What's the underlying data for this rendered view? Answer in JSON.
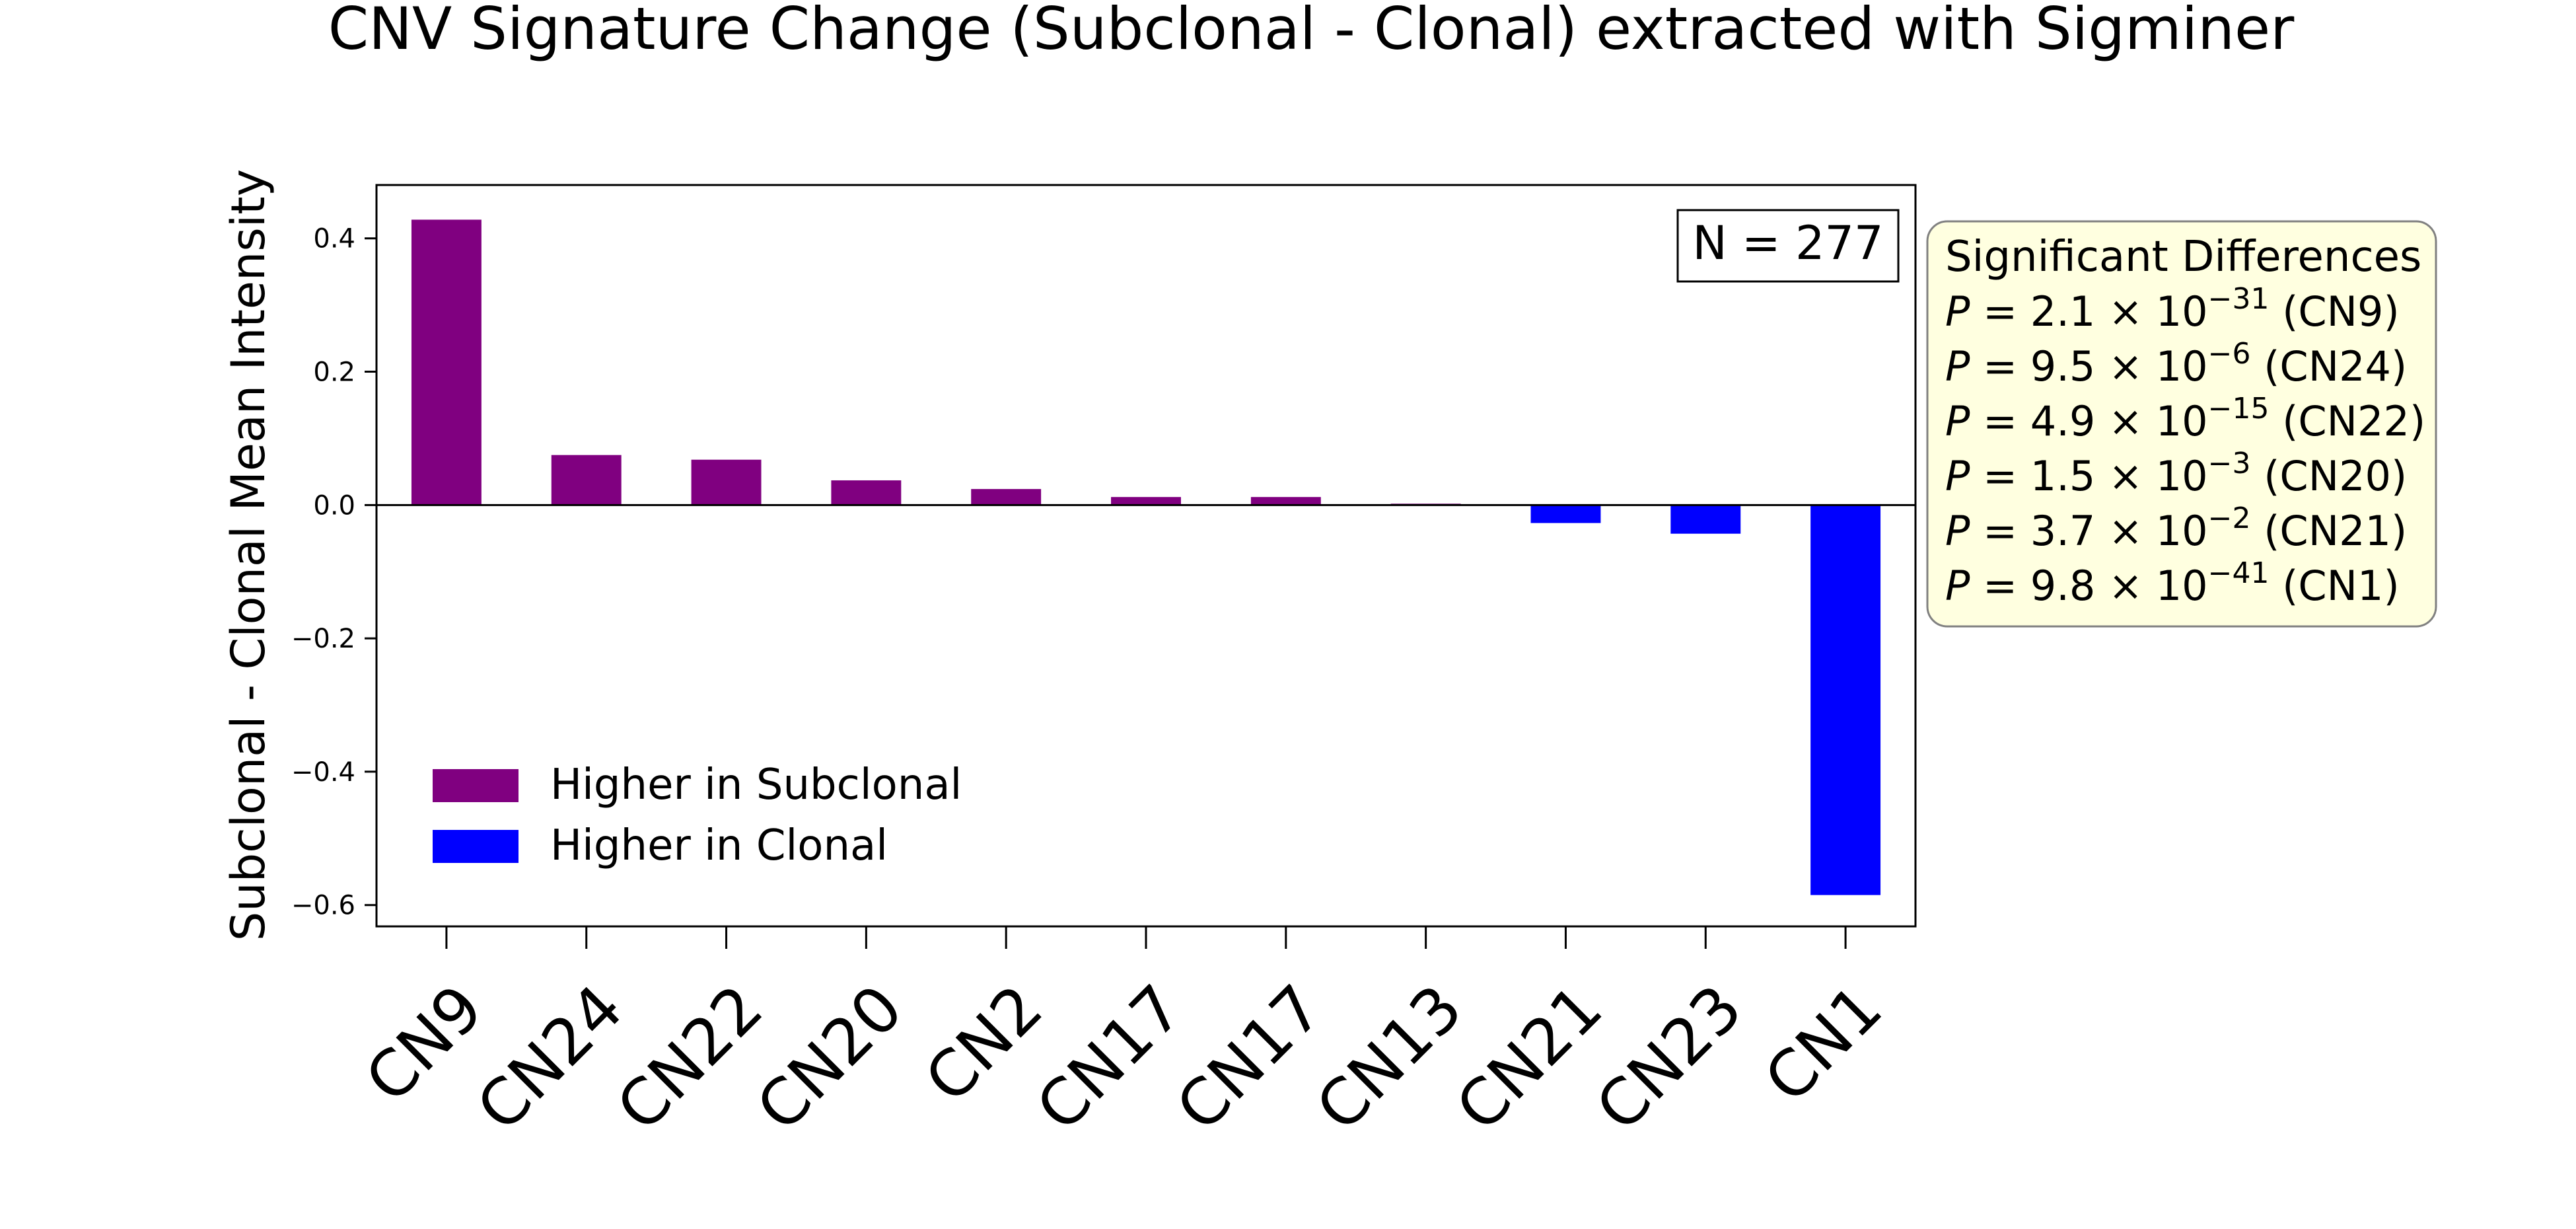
{
  "chart_data": {
    "type": "bar",
    "title": "CNV Signature Change (Subclonal - Clonal) extracted with Sigminer",
    "xlabel": "",
    "ylabel": "Subclonal - Clonal Mean Intensity",
    "categories": [
      "CN9",
      "CN24",
      "CN22",
      "CN20",
      "CN2",
      "CN17",
      "CN17",
      "CN13",
      "CN21",
      "CN23",
      "CN1"
    ],
    "values": [
      0.428,
      0.075,
      0.068,
      0.037,
      0.024,
      0.012,
      0.012,
      0.002,
      -0.027,
      -0.043,
      -0.585
    ],
    "ylim": [
      -0.632,
      0.48
    ],
    "yticks": [
      0.4,
      0.2,
      0.0,
      -0.2,
      -0.4,
      -0.6
    ],
    "ytick_labels": [
      "0.4",
      "0.2",
      "0.0",
      "−0.2",
      "−0.4",
      "−0.6"
    ],
    "grid": false,
    "legend": {
      "placement": "lower-left",
      "entries": [
        {
          "label": "Higher in Subclonal",
          "color": "#800080"
        },
        {
          "label": "Higher in Clonal",
          "color": "#0000ff"
        }
      ]
    },
    "n_label": "N = 277",
    "annotation": {
      "title": "Significant Differences",
      "lines": [
        {
          "mant": "2.1",
          "exp": "−31",
          "sig": "(CN9)"
        },
        {
          "mant": "9.5",
          "exp": "−6",
          "sig": "(CN24)"
        },
        {
          "mant": "4.9",
          "exp": "−15",
          "sig": "(CN22)"
        },
        {
          "mant": "1.5",
          "exp": "−3",
          "sig": "(CN20)"
        },
        {
          "mant": "3.7",
          "exp": "−2",
          "sig": "(CN21)"
        },
        {
          "mant": "9.8",
          "exp": "−41",
          "sig": "(CN1)"
        }
      ]
    },
    "colors": {
      "positive": "#800080",
      "negative": "#0000ff",
      "annotation_bg": "#ffffe0"
    }
  }
}
